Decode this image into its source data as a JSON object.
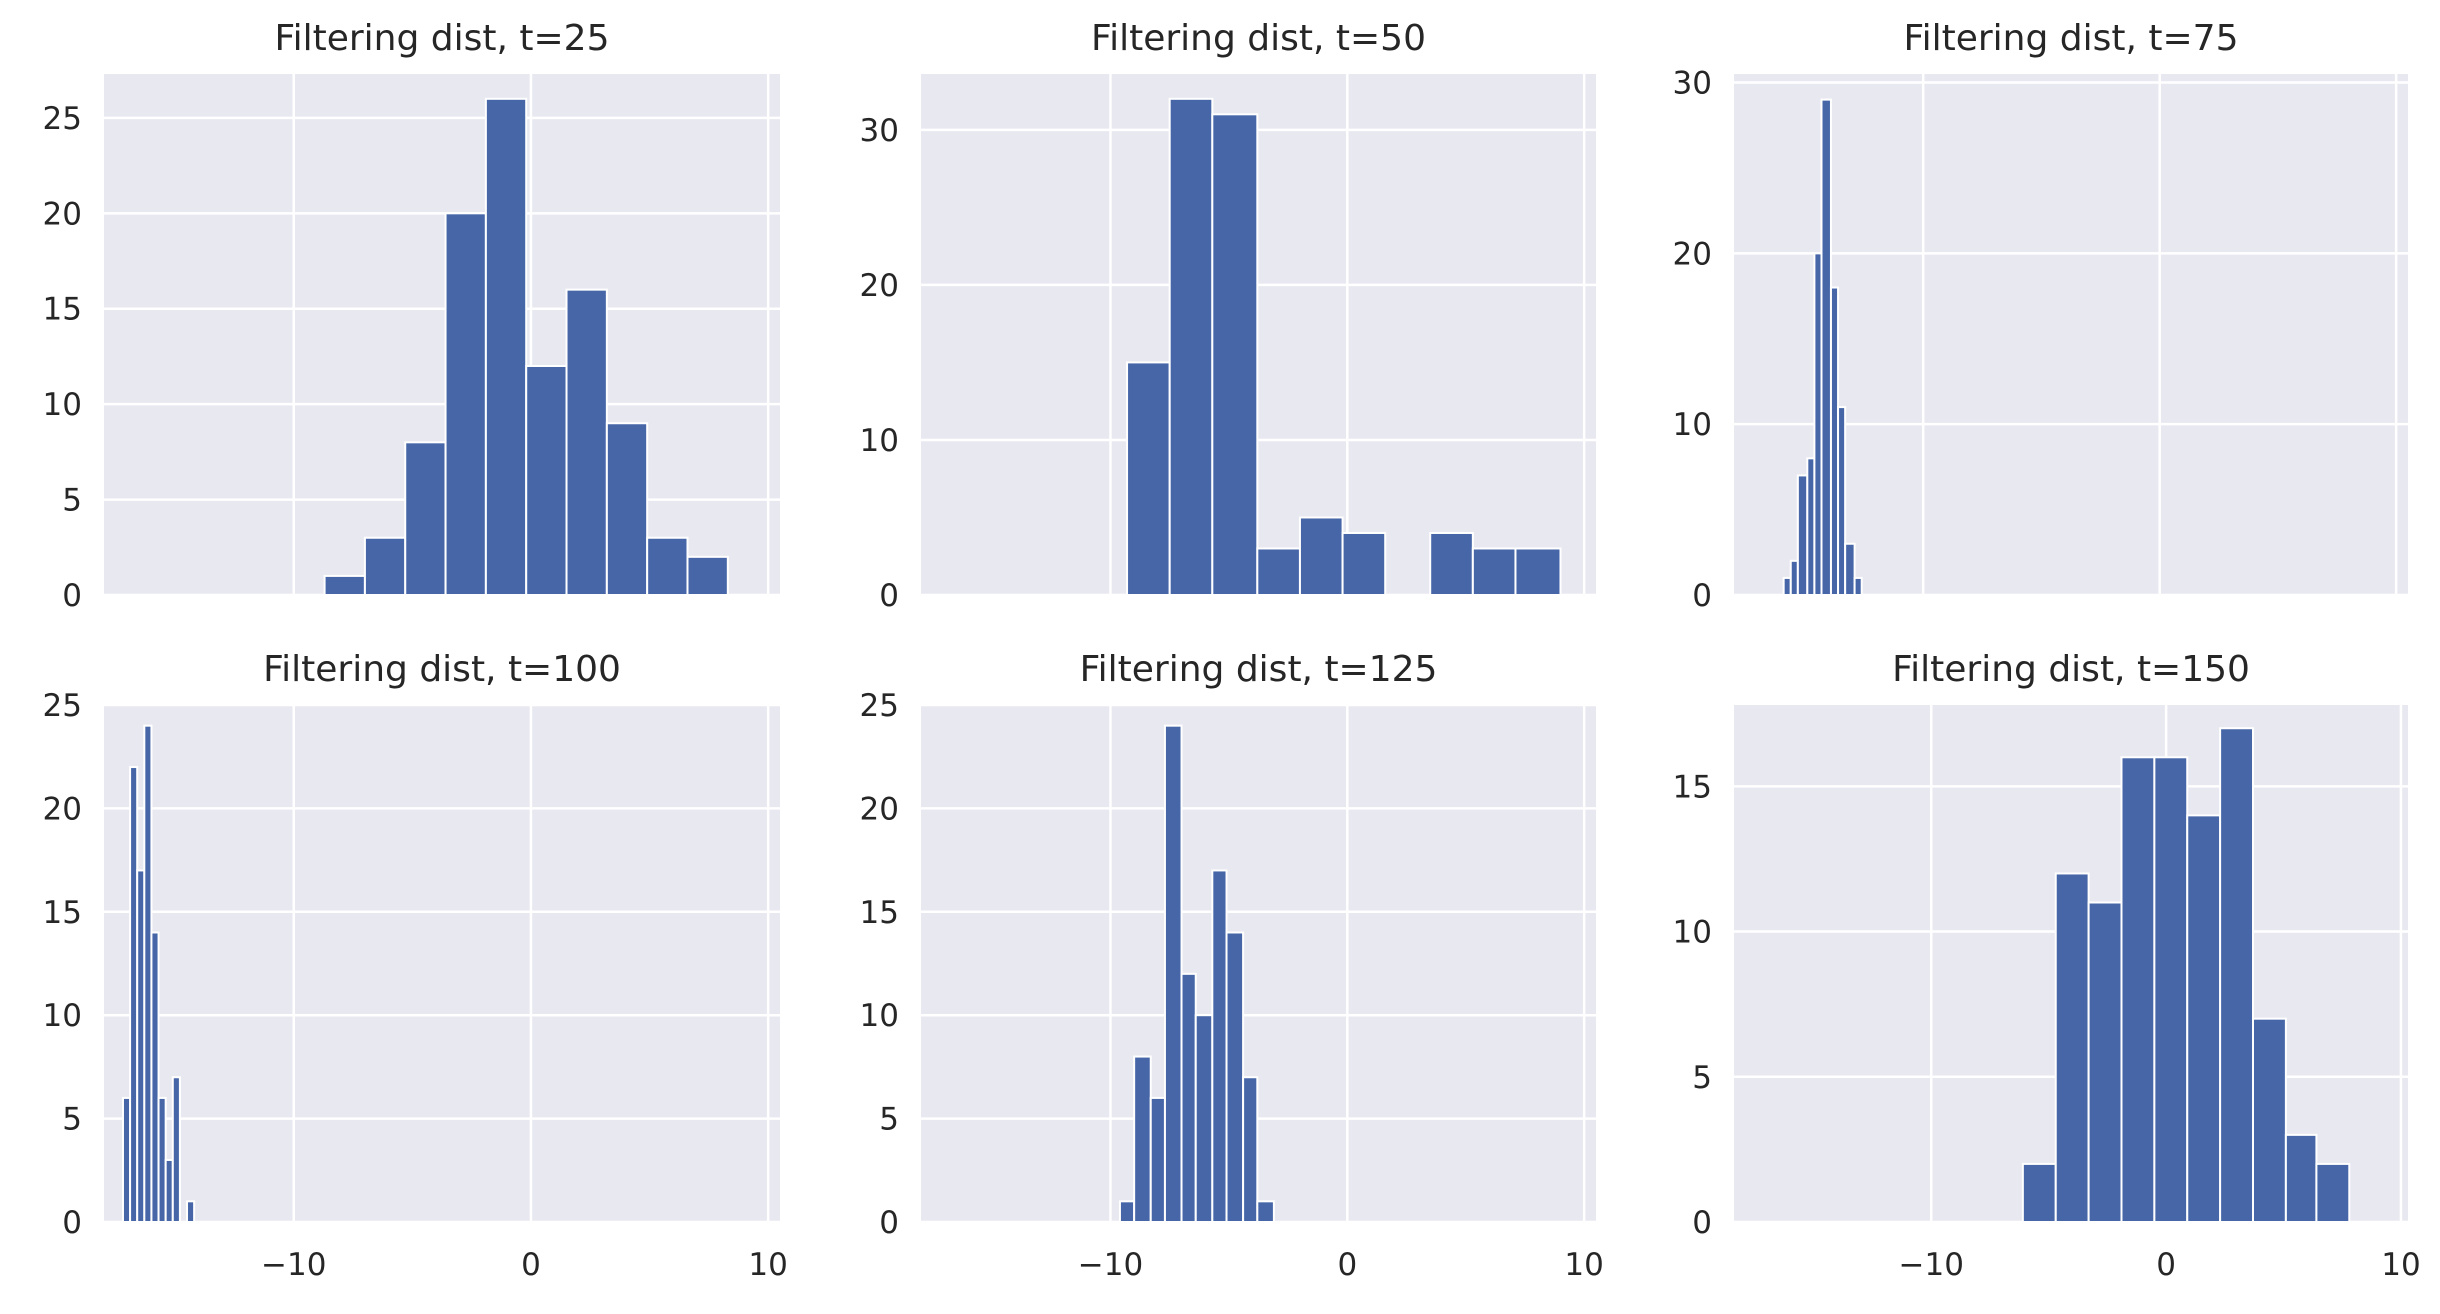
{
  "colors": {
    "bar": "#4666a8",
    "panel_bg": "#e8e8f0",
    "grid": "#ffffff",
    "text": "#262626"
  },
  "chart_data": [
    {
      "type": "bar",
      "title": "Filtering dist, t=25",
      "xlim": [
        -18,
        10.5
      ],
      "ylim": [
        0,
        27.3
      ],
      "xticks": [],
      "yticks": [
        0,
        5,
        10,
        15,
        20,
        25
      ],
      "xgrid": [
        -10,
        0,
        10
      ],
      "bins": [
        [
          -8.7,
          -7.0,
          1
        ],
        [
          -7.0,
          -5.3,
          3
        ],
        [
          -5.3,
          -3.6,
          8
        ],
        [
          -3.6,
          -1.9,
          20
        ],
        [
          -1.9,
          -0.2,
          26
        ],
        [
          -0.2,
          1.5,
          12
        ],
        [
          1.5,
          3.2,
          16
        ],
        [
          3.2,
          4.9,
          9
        ],
        [
          4.9,
          6.6,
          3
        ],
        [
          6.6,
          8.3,
          2
        ]
      ]
    },
    {
      "type": "bar",
      "title": "Filtering dist, t=50",
      "xlim": [
        -18,
        10.5
      ],
      "ylim": [
        0,
        33.6
      ],
      "xticks": [],
      "yticks": [
        0,
        10,
        20,
        30
      ],
      "xgrid": [
        -10,
        0,
        10
      ],
      "bins": [
        [
          -9.3,
          -7.5,
          15
        ],
        [
          -7.5,
          -5.7,
          32
        ],
        [
          -5.7,
          -3.8,
          31
        ],
        [
          -3.8,
          -2.0,
          3
        ],
        [
          -2.0,
          -0.2,
          5
        ],
        [
          -0.2,
          1.6,
          4
        ],
        [
          1.6,
          3.5,
          0
        ],
        [
          3.5,
          5.3,
          4
        ],
        [
          5.3,
          7.1,
          3
        ],
        [
          7.1,
          9.0,
          3
        ]
      ]
    },
    {
      "type": "bar",
      "title": "Filtering dist, t=75",
      "xlim": [
        -18,
        10.5
      ],
      "ylim": [
        0,
        30.5
      ],
      "xticks": [],
      "yticks": [
        0,
        10,
        20,
        30
      ],
      "xgrid": [
        -10,
        0,
        10
      ],
      "bins": [
        [
          -15.9,
          -15.6,
          1
        ],
        [
          -15.6,
          -15.3,
          2
        ],
        [
          -15.3,
          -14.9,
          7
        ],
        [
          -14.9,
          -14.6,
          8
        ],
        [
          -14.6,
          -14.3,
          20
        ],
        [
          -14.3,
          -13.9,
          29
        ],
        [
          -13.9,
          -13.6,
          18
        ],
        [
          -13.6,
          -13.3,
          11
        ],
        [
          -13.3,
          -12.9,
          3
        ],
        [
          -12.9,
          -12.6,
          1
        ]
      ]
    },
    {
      "type": "bar",
      "title": "Filtering dist, t=100",
      "xlim": [
        -18,
        10.5
      ],
      "ylim": [
        0,
        25
      ],
      "xticks": [
        -10,
        0,
        10
      ],
      "yticks": [
        0,
        5,
        10,
        15,
        20,
        25
      ],
      "xgrid": [
        -10,
        0,
        10
      ],
      "bins": [
        [
          -17.2,
          -16.9,
          6
        ],
        [
          -16.9,
          -16.6,
          22
        ],
        [
          -16.6,
          -16.3,
          17
        ],
        [
          -16.3,
          -16.0,
          24
        ],
        [
          -16.0,
          -15.7,
          14
        ],
        [
          -15.7,
          -15.4,
          6
        ],
        [
          -15.4,
          -15.1,
          3
        ],
        [
          -15.1,
          -14.8,
          7
        ],
        [
          -14.8,
          -14.5,
          0
        ],
        [
          -14.5,
          -14.2,
          1
        ]
      ]
    },
    {
      "type": "bar",
      "title": "Filtering dist, t=125",
      "xlim": [
        -18,
        10.5
      ],
      "ylim": [
        0,
        25
      ],
      "xticks": [
        -10,
        0,
        10
      ],
      "yticks": [
        0,
        5,
        10,
        15,
        20,
        25
      ],
      "xgrid": [
        -10,
        0,
        10
      ],
      "bins": [
        [
          -9.6,
          -9.0,
          1
        ],
        [
          -9.0,
          -8.3,
          8
        ],
        [
          -8.3,
          -7.7,
          6
        ],
        [
          -7.7,
          -7.0,
          24
        ],
        [
          -7.0,
          -6.4,
          12
        ],
        [
          -6.4,
          -5.7,
          10
        ],
        [
          -5.7,
          -5.1,
          17
        ],
        [
          -5.1,
          -4.4,
          14
        ],
        [
          -4.4,
          -3.8,
          7
        ],
        [
          -3.8,
          -3.1,
          1
        ]
      ]
    },
    {
      "type": "bar",
      "title": "Filtering dist, t=150",
      "xlim": [
        -18.4,
        10.3
      ],
      "ylim": [
        0,
        17.8
      ],
      "xticks": [
        -10,
        0,
        10
      ],
      "yticks": [
        0,
        5,
        10,
        15
      ],
      "xgrid": [
        -10,
        0,
        10
      ],
      "bins": [
        [
          -6.1,
          -4.7,
          2
        ],
        [
          -4.7,
          -3.3,
          12
        ],
        [
          -3.3,
          -1.9,
          11
        ],
        [
          -1.9,
          -0.5,
          16
        ],
        [
          -0.5,
          0.9,
          16
        ],
        [
          0.9,
          2.3,
          14
        ],
        [
          2.3,
          3.7,
          17
        ],
        [
          3.7,
          5.1,
          7
        ],
        [
          5.1,
          6.4,
          3
        ],
        [
          6.4,
          7.8,
          2
        ]
      ]
    }
  ]
}
